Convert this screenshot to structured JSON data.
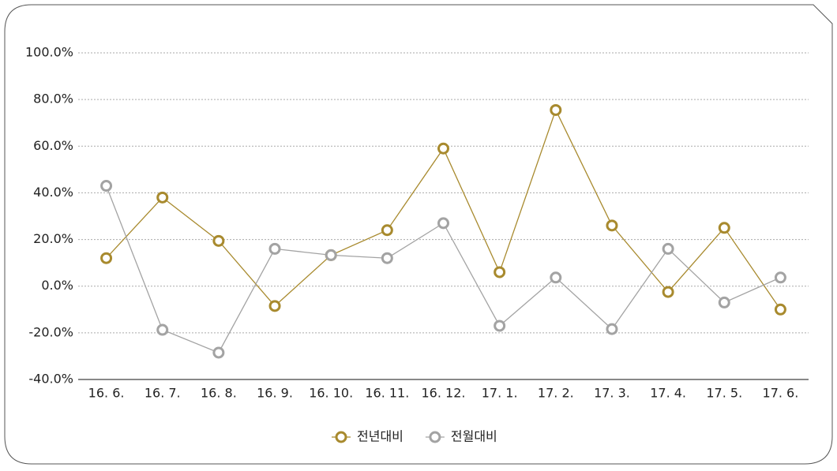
{
  "chart_data": {
    "type": "line",
    "categories": [
      "16. 6.",
      "16. 7.",
      "16. 8.",
      "16. 9.",
      "16. 10.",
      "16. 11.",
      "16. 12.",
      "17. 1.",
      "17. 2.",
      "17. 3.",
      "17. 4.",
      "17. 5.",
      "17. 6."
    ],
    "series": [
      {
        "name": "전년대비",
        "color": "#a88a2e",
        "values": [
          12,
          38,
          19.4,
          -8.5,
          13.3,
          24,
          59,
          6,
          75.5,
          26,
          -2.5,
          25,
          -10
        ]
      },
      {
        "name": "전월대비",
        "color": "#a3a3a3",
        "values": [
          43,
          -18.7,
          -28.5,
          16,
          13.3,
          12,
          27,
          -17,
          3.7,
          -18.4,
          16,
          -7,
          3.7
        ]
      }
    ],
    "ylim": [
      -40,
      100
    ],
    "yticks": [
      {
        "value": -40,
        "label": "-40.0%"
      },
      {
        "value": -20,
        "label": "-20.0%"
      },
      {
        "value": 0,
        "label": "0.0%"
      },
      {
        "value": 20,
        "label": "20.0%"
      },
      {
        "value": 40,
        "label": "40.0%"
      },
      {
        "value": 60,
        "label": "60.0%"
      },
      {
        "value": 80,
        "label": "80.0%"
      },
      {
        "value": 100,
        "label": "100.0%"
      }
    ],
    "grid": true,
    "legend": "bottom"
  }
}
